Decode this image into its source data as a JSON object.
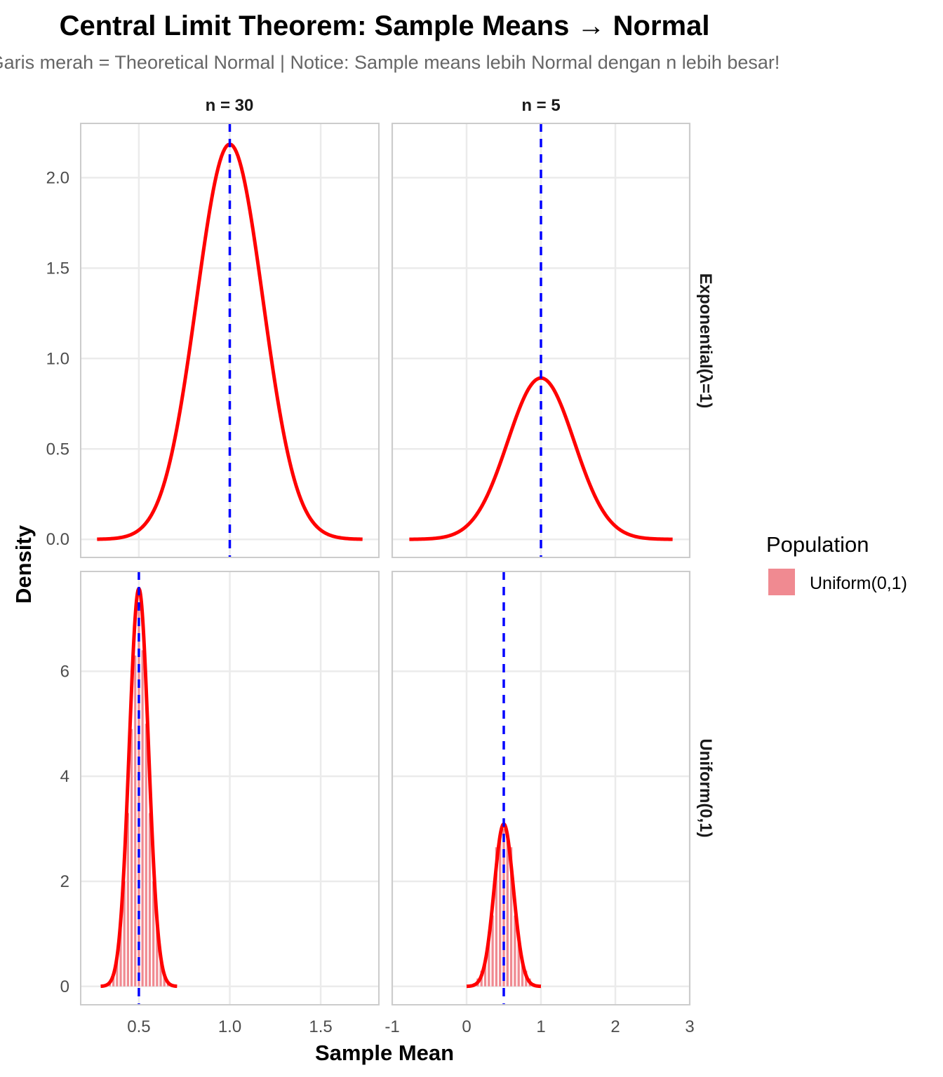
{
  "chart_data": {
    "type": "faceted-histogram-density",
    "title": "Central Limit Theorem: Sample Means → Normal",
    "subtitle": "Garis merah = Theoretical Normal | Notice: Sample means lebih Normal dengan n lebih besar!",
    "xlabel": "Sample Mean",
    "ylabel": "Density",
    "col_facets": [
      "n = 30",
      "n = 5"
    ],
    "row_facets": [
      "Exponential(λ=1)",
      "Uniform(0,1)"
    ],
    "grid": true,
    "legend": {
      "title": "Population",
      "position": "right",
      "entries": [
        {
          "label": "Uniform(0,1)",
          "color": "#f08a91"
        }
      ]
    },
    "colors": {
      "normal_curve": "#ff0000",
      "mean_line": "#0000ff",
      "histogram": "#f08a91",
      "grid": "#ebebeb",
      "panel_border": "#cccccc"
    },
    "x_axes": [
      {
        "column": "n = 30",
        "range": [
          0.18,
          1.82
        ],
        "ticks": [
          0.5,
          1.0,
          1.5
        ],
        "tick_labels": [
          "0.5",
          "1.0",
          "1.5"
        ]
      },
      {
        "column": "n = 5",
        "range": [
          -1.0,
          3.0
        ],
        "ticks": [
          -1,
          0,
          1,
          2,
          3
        ],
        "tick_labels": [
          "-1",
          "0",
          "1",
          "2",
          "3"
        ]
      }
    ],
    "y_axes": [
      {
        "row": "Exponential(λ=1)",
        "range": [
          -0.1,
          2.3
        ],
        "ticks": [
          0.0,
          0.5,
          1.0,
          1.5,
          2.0
        ],
        "tick_labels": [
          "0.0",
          "0.5",
          "1.0",
          "1.5",
          "2.0"
        ]
      },
      {
        "row": "Uniform(0,1)",
        "range": [
          -0.35,
          7.9
        ],
        "ticks": [
          0,
          2,
          4,
          6
        ],
        "tick_labels": [
          "0",
          "2",
          "4",
          "6"
        ]
      }
    ],
    "panels": [
      {
        "row": "Exponential(λ=1)",
        "col": "n = 30",
        "population_mean": 1.0,
        "normal": {
          "mean": 1.0,
          "sd": 0.1826,
          "x_range": [
            0.27,
            1.73
          ],
          "peak_density": 2.18
        },
        "histogram": null
      },
      {
        "row": "Exponential(λ=1)",
        "col": "n = 5",
        "population_mean": 1.0,
        "normal": {
          "mean": 1.0,
          "sd": 0.4472,
          "x_range": [
            -0.77,
            2.77
          ],
          "peak_density": 0.89
        },
        "histogram": null
      },
      {
        "row": "Uniform(0,1)",
        "col": "n = 30",
        "population_mean": 0.5,
        "normal": {
          "mean": 0.5,
          "sd": 0.0527,
          "x_range": [
            0.29,
            0.71
          ],
          "peak_density": 7.57
        },
        "histogram": {
          "bin_centers": [
            0.3,
            0.32,
            0.34,
            0.36,
            0.38,
            0.4,
            0.42,
            0.44,
            0.46,
            0.48,
            0.5,
            0.52,
            0.54,
            0.56,
            0.58,
            0.6,
            0.62,
            0.64,
            0.66,
            0.68,
            0.7
          ],
          "densities": [
            0.0,
            0.02,
            0.08,
            0.22,
            0.55,
            1.1,
            2.0,
            3.3,
            4.9,
            6.3,
            7.3,
            6.4,
            5.0,
            3.3,
            2.0,
            1.1,
            0.5,
            0.2,
            0.08,
            0.02,
            0.0
          ]
        }
      },
      {
        "row": "Uniform(0,1)",
        "col": "n = 5",
        "population_mean": 0.5,
        "normal": {
          "mean": 0.5,
          "sd": 0.1291,
          "x_range": [
            0.0,
            1.0
          ],
          "peak_density": 3.09
        },
        "histogram": {
          "bin_centers": [
            0.05,
            0.1,
            0.15,
            0.2,
            0.25,
            0.3,
            0.35,
            0.4,
            0.45,
            0.5,
            0.55,
            0.6,
            0.65,
            0.7,
            0.75,
            0.8,
            0.85,
            0.9,
            0.95
          ],
          "densities": [
            0.02,
            0.06,
            0.15,
            0.3,
            0.55,
            0.9,
            1.35,
            2.65,
            2.9,
            3.0,
            2.9,
            2.65,
            1.35,
            0.9,
            0.55,
            0.3,
            0.15,
            0.06,
            0.02
          ]
        }
      }
    ]
  }
}
